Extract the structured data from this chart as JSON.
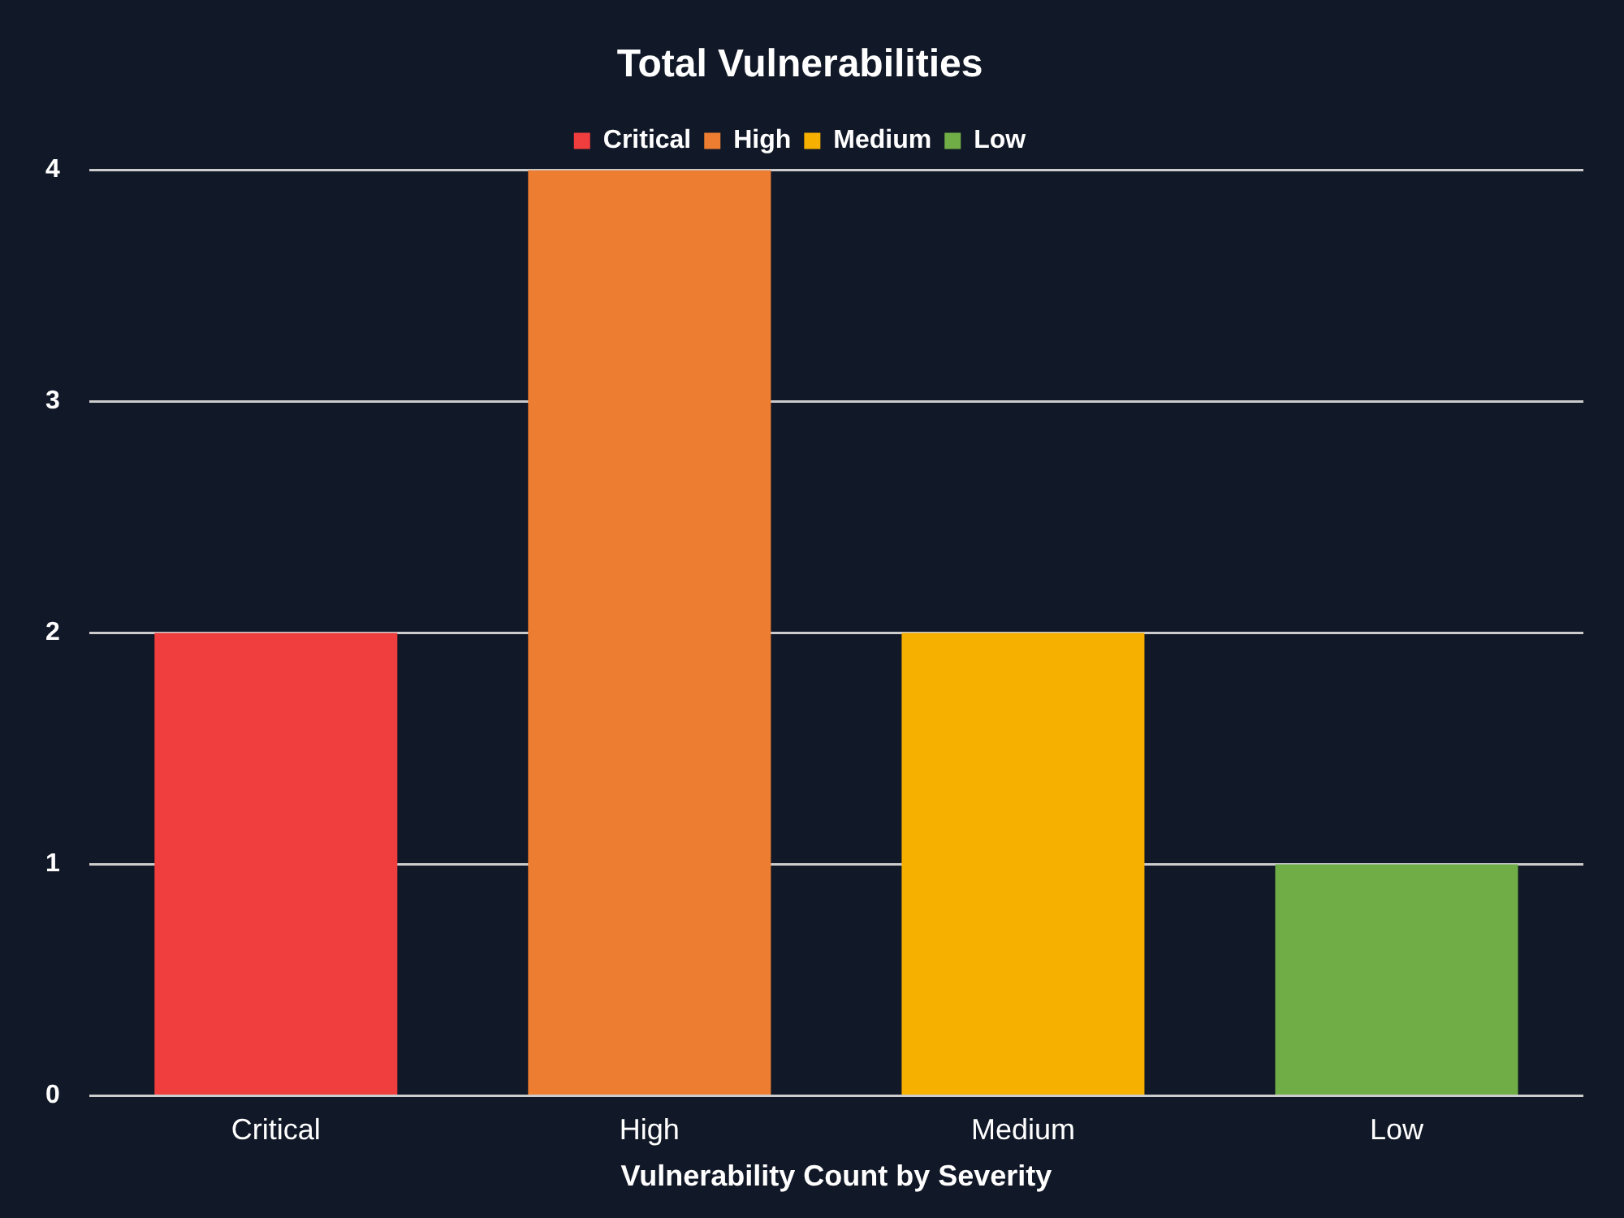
{
  "chart_data": {
    "type": "bar",
    "title": "Total Vulnerabilities",
    "xlabel": "Vulnerability Count by Severity",
    "categories": [
      "Critical",
      "High",
      "Medium",
      "Low"
    ],
    "series": [
      {
        "name": "Critical",
        "color": "#f03e3e",
        "values": [
          2,
          null,
          null,
          null
        ]
      },
      {
        "name": "High",
        "color": "#ed7d31",
        "values": [
          null,
          4,
          null,
          null
        ]
      },
      {
        "name": "Medium",
        "color": "#f5b000",
        "values": [
          null,
          null,
          2,
          null
        ]
      },
      {
        "name": "Low",
        "color": "#70ad47",
        "values": [
          null,
          null,
          null,
          1
        ]
      }
    ],
    "ylim": [
      0,
      4
    ],
    "yticks": [
      0,
      1,
      2,
      3,
      4
    ],
    "grid": "y",
    "legend": "top"
  }
}
